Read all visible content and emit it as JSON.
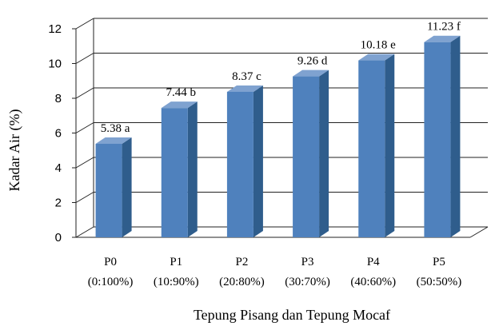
{
  "chart_data": {
    "type": "bar",
    "categories": [
      "P0",
      "P1",
      "P2",
      "P3",
      "P4",
      "P5"
    ],
    "category_sublabels": [
      "(0:100%)",
      "(10:90%)",
      "(20:80%)",
      "(30:70%)",
      "(40:60%)",
      "(50:50%)"
    ],
    "values": [
      5.38,
      7.44,
      8.37,
      9.26,
      10.18,
      11.23
    ],
    "data_labels": [
      "5.38 a",
      "7.44 b",
      "8.37 c",
      "9.26 d",
      "10.18 e",
      "11.23 f"
    ],
    "xlabel": "Tepung Pisang dan Tepung Mocaf",
    "ylabel": "Kadar Air (%)",
    "ylim": [
      0,
      12
    ],
    "yticks": [
      0,
      2,
      4,
      6,
      8,
      10,
      12
    ],
    "grid": true,
    "legend": "none",
    "style": "3d-column",
    "colors": {
      "bar_front": "#4F81BD",
      "bar_side": "#2F5D8C",
      "bar_top": "#7FA2D0",
      "grid": "#222222"
    }
  }
}
